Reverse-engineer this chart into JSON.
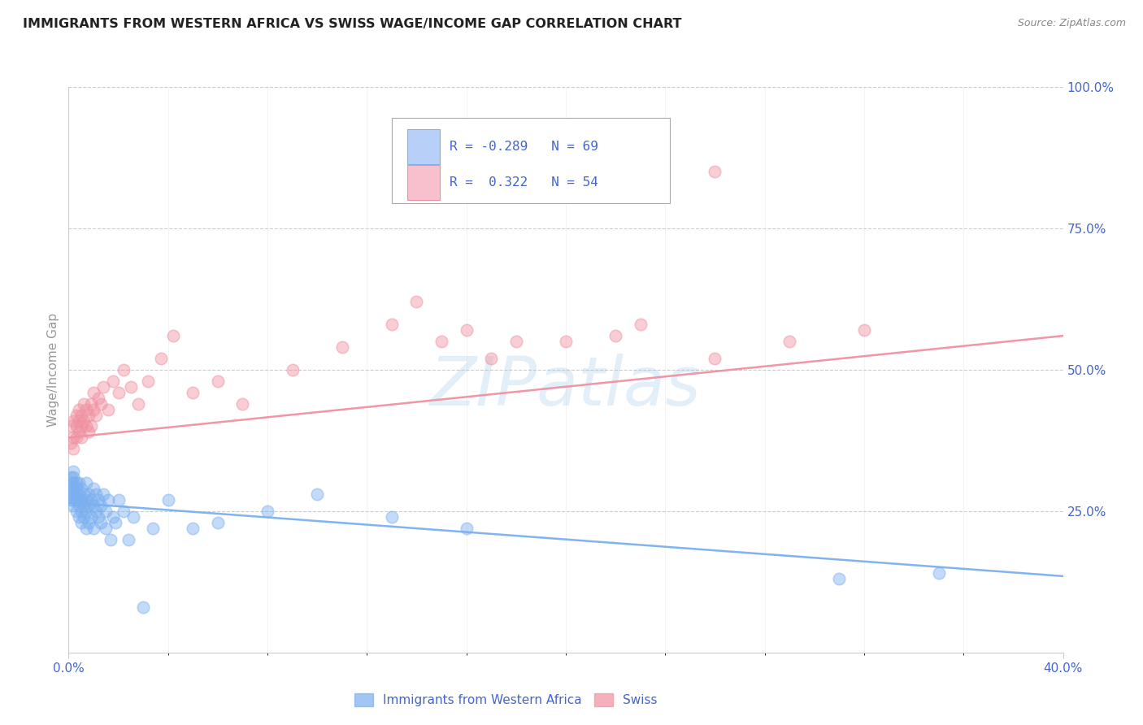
{
  "title": "IMMIGRANTS FROM WESTERN AFRICA VS SWISS WAGE/INCOME GAP CORRELATION CHART",
  "source": "Source: ZipAtlas.com",
  "ylabel": "Wage/Income Gap",
  "series1_label": "Immigrants from Western Africa",
  "series2_label": "Swiss",
  "series1_color": "#7aaff0",
  "series2_color": "#f090a0",
  "series1_R": -0.289,
  "series1_N": 69,
  "series2_R": 0.322,
  "series2_N": 54,
  "xlim": [
    0.0,
    0.4
  ],
  "ylim": [
    0.0,
    1.0
  ],
  "xtick_labels": [
    "0.0%",
    "",
    "",
    "",
    "",
    "",
    "",
    "",
    "",
    "",
    "40.0%"
  ],
  "xtick_values": [
    0.0,
    0.04,
    0.08,
    0.12,
    0.16,
    0.2,
    0.24,
    0.28,
    0.32,
    0.36,
    0.4
  ],
  "ytick_labels_right": [
    "25.0%",
    "50.0%",
    "75.0%",
    "100.0%"
  ],
  "ytick_values_right": [
    0.25,
    0.5,
    0.75,
    1.0
  ],
  "watermark_text": "ZIPatlas",
  "background_color": "#ffffff",
  "title_color": "#222222",
  "axis_label_color": "#4466cc",
  "grid_color": "#cccccc",
  "series1_x": [
    0.001,
    0.001,
    0.001,
    0.001,
    0.001,
    0.002,
    0.002,
    0.002,
    0.002,
    0.002,
    0.002,
    0.002,
    0.003,
    0.003,
    0.003,
    0.003,
    0.003,
    0.004,
    0.004,
    0.004,
    0.004,
    0.004,
    0.005,
    0.005,
    0.005,
    0.005,
    0.006,
    0.006,
    0.006,
    0.007,
    0.007,
    0.007,
    0.007,
    0.008,
    0.008,
    0.008,
    0.009,
    0.009,
    0.01,
    0.01,
    0.01,
    0.011,
    0.011,
    0.012,
    0.012,
    0.013,
    0.013,
    0.014,
    0.015,
    0.015,
    0.016,
    0.017,
    0.018,
    0.019,
    0.02,
    0.022,
    0.024,
    0.026,
    0.03,
    0.034,
    0.04,
    0.05,
    0.06,
    0.08,
    0.1,
    0.13,
    0.16,
    0.31,
    0.35
  ],
  "series1_y": [
    0.28,
    0.3,
    0.27,
    0.31,
    0.29,
    0.28,
    0.3,
    0.27,
    0.29,
    0.31,
    0.26,
    0.32,
    0.25,
    0.28,
    0.27,
    0.3,
    0.29,
    0.24,
    0.27,
    0.26,
    0.28,
    0.3,
    0.25,
    0.27,
    0.23,
    0.29,
    0.26,
    0.24,
    0.28,
    0.25,
    0.27,
    0.22,
    0.3,
    0.23,
    0.26,
    0.28,
    0.24,
    0.27,
    0.26,
    0.22,
    0.29,
    0.25,
    0.28,
    0.24,
    0.27,
    0.23,
    0.26,
    0.28,
    0.22,
    0.25,
    0.27,
    0.2,
    0.24,
    0.23,
    0.27,
    0.25,
    0.2,
    0.24,
    0.08,
    0.22,
    0.27,
    0.22,
    0.23,
    0.25,
    0.28,
    0.24,
    0.22,
    0.13,
    0.14
  ],
  "series2_x": [
    0.001,
    0.001,
    0.002,
    0.002,
    0.002,
    0.003,
    0.003,
    0.003,
    0.004,
    0.004,
    0.004,
    0.005,
    0.005,
    0.005,
    0.006,
    0.006,
    0.007,
    0.007,
    0.008,
    0.008,
    0.009,
    0.009,
    0.01,
    0.01,
    0.011,
    0.012,
    0.013,
    0.014,
    0.016,
    0.018,
    0.02,
    0.022,
    0.025,
    0.028,
    0.032,
    0.037,
    0.042,
    0.05,
    0.06,
    0.07,
    0.09,
    0.11,
    0.13,
    0.15,
    0.17,
    0.2,
    0.23,
    0.26,
    0.29,
    0.32,
    0.14,
    0.16,
    0.18,
    0.22
  ],
  "series2_y": [
    0.37,
    0.4,
    0.38,
    0.36,
    0.41,
    0.4,
    0.42,
    0.38,
    0.41,
    0.39,
    0.43,
    0.4,
    0.38,
    0.42,
    0.41,
    0.44,
    0.4,
    0.43,
    0.39,
    0.42,
    0.44,
    0.4,
    0.43,
    0.46,
    0.42,
    0.45,
    0.44,
    0.47,
    0.43,
    0.48,
    0.46,
    0.5,
    0.47,
    0.44,
    0.48,
    0.52,
    0.56,
    0.46,
    0.48,
    0.44,
    0.5,
    0.54,
    0.58,
    0.55,
    0.52,
    0.55,
    0.58,
    0.52,
    0.55,
    0.57,
    0.62,
    0.57,
    0.55,
    0.56
  ],
  "series2_outlier_x": [
    0.26
  ],
  "series2_outlier_y": [
    0.85
  ],
  "series1_trendline_x": [
    0.0,
    0.4
  ],
  "series1_trendline_y": [
    0.265,
    0.135
  ],
  "series2_trendline_x": [
    0.0,
    0.4
  ],
  "series2_trendline_y": [
    0.38,
    0.56
  ]
}
